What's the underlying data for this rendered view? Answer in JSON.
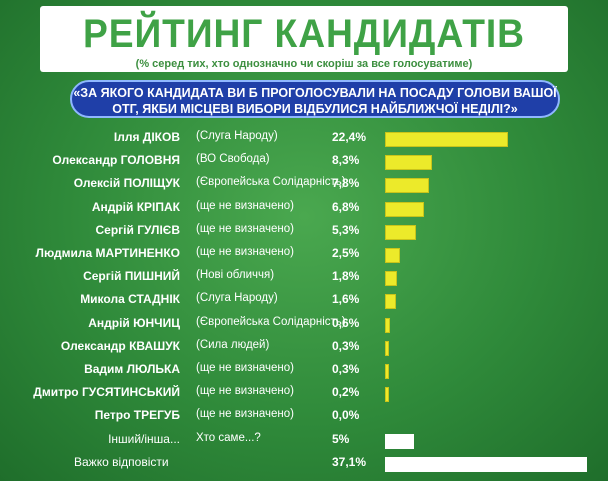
{
  "header": {
    "title": "РЕЙТИНГ КАНДИДАТІВ",
    "subtitle": "(% серед тих, хто однозначно чи скоріш за все голосуватиме)",
    "question": "«ЗА ЯКОГО КАНДИДАТА ВИ Б ПРОГОЛОСУВАЛИ НА ПОСАДУ ГОЛОВИ ВАШОЇ ОТГ, ЯКБИ МІСЦЕВІ ВИБОРИ ВІДБУЛИСЯ НАЙБЛИЖЧОЇ НЕДІЛІ?»"
  },
  "colors": {
    "background": "#2f8a3a",
    "title_green": "#3fa246",
    "question_blue": "#1f3fa8",
    "bar_yellow": "#ecea2a",
    "bar_white": "#ffffff"
  },
  "chart_data": {
    "type": "bar",
    "orientation": "horizontal",
    "title": "РЕЙТИНГ КАНДИДАТІВ",
    "categories": [
      "Ілля ДІКОВ",
      "Олександр ГОЛОВНЯ",
      "Олексій ПОЛІЩУК",
      "Андрій КРІПАК",
      "Сергій ГУЛІЄВ",
      "Людмила МАРТИНЕНКО",
      "Сергій ПИШНИЙ",
      "Микола СТАДНІК",
      "Андрій ЮНЧИЦ",
      "Олександр КВАШУК",
      "Вадим ЛЮЛЬКА",
      "Дмитро ГУСЯТИНСЬКИЙ",
      "Петро ТРЕГУБ",
      "Інший/інша...",
      "Важко відповісти"
    ],
    "parties": [
      "(Слуга Народу)",
      "(ВО Свобода)",
      "(Європейська Солідарність)",
      "(ще не визначено)",
      "(ще не визначено)",
      "(ще не визначено)",
      "(Нові обличчя)",
      "(Слуга Народу)",
      "(Європейська Солідарність)",
      "(Сила людей)",
      "(ще не визначено)",
      "(ще не визначено)",
      "(ще не визначено)",
      "Хто саме...?",
      ""
    ],
    "values": [
      22.4,
      8.3,
      7.8,
      6.8,
      5.3,
      2.5,
      1.8,
      1.6,
      0.6,
      0.3,
      0.3,
      0.2,
      0.0,
      5,
      37.1
    ],
    "value_labels": [
      "22,4%",
      "8,3%",
      "7,8%",
      "6,8%",
      "5,3%",
      "2,5%",
      "1,8%",
      "1,6%",
      "0,6%",
      "0,3%",
      "0,3%",
      "0,2%",
      "0,0%",
      "5%",
      "37,1%"
    ],
    "bar_colors": [
      "yellow",
      "yellow",
      "yellow",
      "yellow",
      "yellow",
      "yellow",
      "yellow",
      "yellow",
      "yellow",
      "yellow",
      "yellow",
      "yellow",
      "yellow",
      "white",
      "white"
    ],
    "xlim": [
      0,
      37.1
    ],
    "unit": "%"
  }
}
